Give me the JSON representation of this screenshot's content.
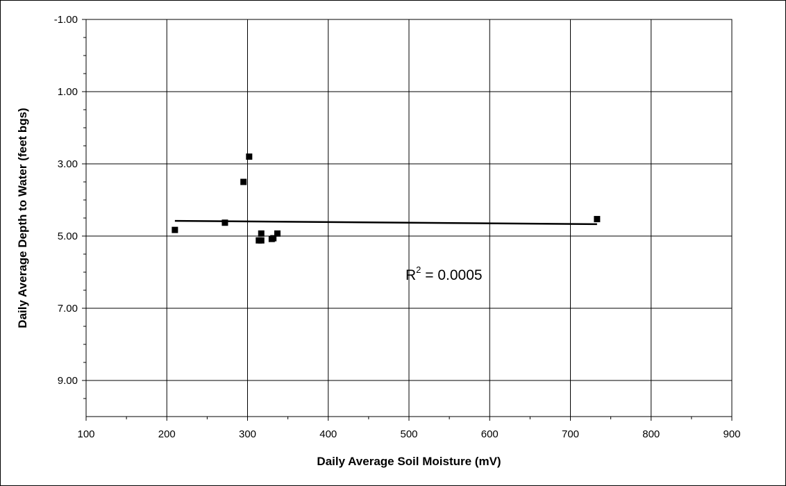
{
  "chart_data": {
    "type": "scatter",
    "title": "",
    "xlabel": "Daily Average Soil Moisture (mV)",
    "ylabel": "Daily Average Depth to Water (feet bgs)",
    "xlim": [
      100,
      900
    ],
    "ylim": [
      -1.0,
      10.0
    ],
    "y_inverted": true,
    "x_ticks": [
      100,
      200,
      300,
      400,
      500,
      600,
      700,
      800,
      900
    ],
    "x_tick_labels": [
      "100",
      "200",
      "300",
      "400",
      "500",
      "600",
      "700",
      "800",
      "900"
    ],
    "y_ticks": [
      -1.0,
      1.0,
      3.0,
      5.0,
      7.0,
      9.0
    ],
    "y_tick_labels": [
      "-1.00",
      "1.00",
      "3.00",
      "5.00",
      "7.00",
      "9.00"
    ],
    "grid": true,
    "legend": "none",
    "series": [
      {
        "marker": "square",
        "color": "#000000",
        "points": [
          {
            "x": 210,
            "y": 4.83
          },
          {
            "x": 272,
            "y": 4.63
          },
          {
            "x": 295,
            "y": 3.5
          },
          {
            "x": 302,
            "y": 2.8
          },
          {
            "x": 314,
            "y": 5.12
          },
          {
            "x": 317,
            "y": 5.12
          },
          {
            "x": 317,
            "y": 4.93
          },
          {
            "x": 330,
            "y": 5.08
          },
          {
            "x": 332,
            "y": 5.06
          },
          {
            "x": 337,
            "y": 4.93
          },
          {
            "x": 733,
            "y": 4.53
          }
        ]
      }
    ],
    "trendline": {
      "type": "linear",
      "x": [
        210,
        733
      ],
      "y": [
        4.58,
        4.67
      ],
      "color": "#000000"
    },
    "annotations": [
      {
        "base": "R",
        "sup": "2",
        "rest": " = 0.0005"
      }
    ]
  }
}
